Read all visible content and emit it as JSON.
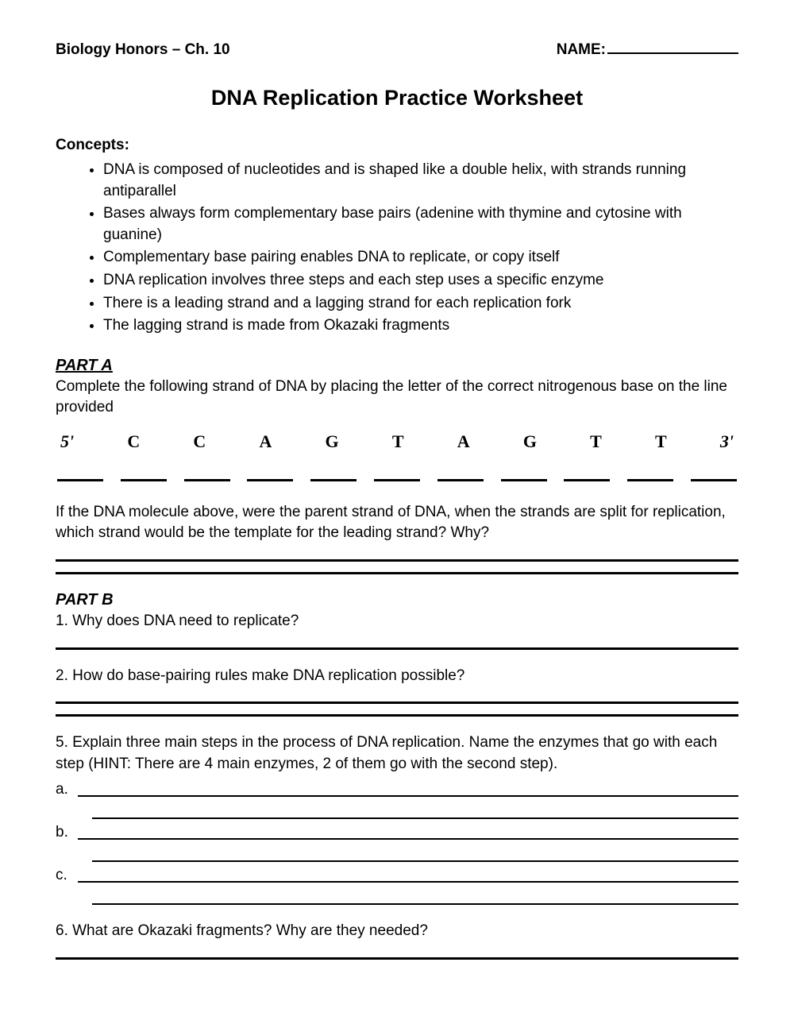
{
  "header": {
    "course": "Biology Honors – Ch. 10",
    "name_label": "NAME:"
  },
  "title": "DNA Replication Practice Worksheet",
  "concepts_label": "Concepts:",
  "concepts": [
    "DNA is composed of nucleotides and is shaped like a double helix, with strands running antiparallel",
    "Bases always form complementary base pairs (adenine with thymine and cytosine with guanine)",
    "Complementary base pairing enables DNA to replicate, or copy itself",
    "DNA replication involves three steps and each step uses a specific enzyme",
    "There is a leading strand and a lagging strand for each replication fork",
    "The lagging strand is made from Okazaki fragments"
  ],
  "part_a": {
    "heading": "PART A",
    "instruction": "Complete the following strand of DNA by placing the letter of the correct nitrogenous base on the line provided",
    "dna_sequence": [
      "5'",
      "C",
      "C",
      "A",
      "G",
      "T",
      "A",
      "G",
      "T",
      "T",
      "3'"
    ],
    "followup": "If the DNA molecule above, were the parent strand of DNA, when the strands are split for replication, which strand would be the template for the leading strand? Why?"
  },
  "part_b": {
    "heading": "PART B",
    "q1": "1. Why does DNA need to replicate?",
    "q2": "2. How do base-pairing rules make DNA replication possible?",
    "q5": "5. Explain three main steps in the process of DNA replication. Name the enzymes that go with each step (HINT: There are 4 main enzymes, 2 of them go with the second step).",
    "q5_subs": [
      "a.",
      "b.",
      "c."
    ],
    "q6": "6. What are Okazaki fragments? Why are they needed?"
  },
  "style": {
    "background_color": "#ffffff",
    "text_color": "#000000",
    "body_font": "Comic Sans MS",
    "sequence_font": "Times New Roman",
    "line_color": "#000000"
  }
}
